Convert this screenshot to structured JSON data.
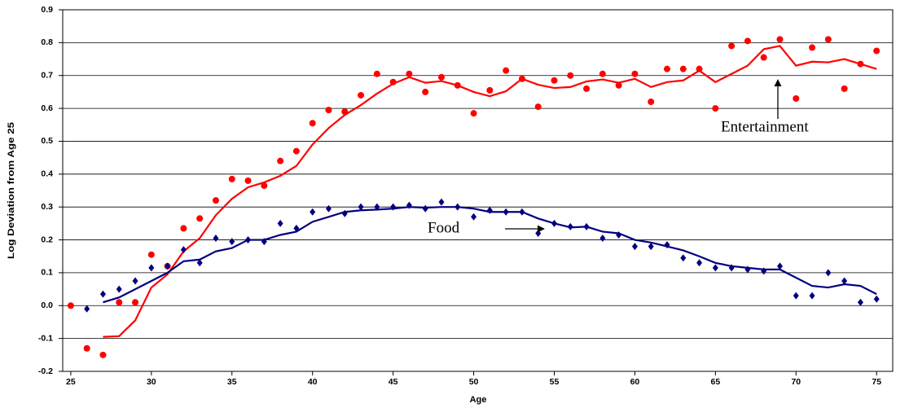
{
  "chart_data": {
    "type": "scatter",
    "x_label": "Age",
    "y_label": "Log Deviation from Age 25",
    "x": [
      25,
      26,
      27,
      28,
      29,
      30,
      31,
      32,
      33,
      34,
      35,
      36,
      37,
      38,
      39,
      40,
      41,
      42,
      43,
      44,
      45,
      46,
      47,
      48,
      49,
      50,
      51,
      52,
      53,
      54,
      55,
      56,
      57,
      58,
      59,
      60,
      61,
      62,
      63,
      64,
      65,
      66,
      67,
      68,
      69,
      70,
      71,
      72,
      73,
      74,
      75
    ],
    "xlim": [
      24.5,
      76
    ],
    "xticks": [
      25,
      30,
      35,
      40,
      45,
      50,
      55,
      60,
      65,
      70,
      75
    ],
    "ylim": [
      -0.2,
      0.9
    ],
    "yticks": [
      -0.2,
      -0.1,
      {
        "value": 0,
        "label": "0.0"
      },
      0.1,
      0.2,
      0.3,
      0.4,
      0.5,
      0.6,
      0.7,
      0.8,
      0.9
    ],
    "grid": true,
    "series": [
      {
        "name": "Entertainment",
        "color": "#ff0000",
        "marker": "circle",
        "values": [
          0.0,
          -0.13,
          -0.15,
          0.01,
          0.01,
          0.155,
          0.12,
          0.235,
          0.265,
          0.32,
          0.385,
          0.38,
          0.365,
          0.44,
          0.47,
          0.555,
          0.595,
          0.59,
          0.64,
          0.705,
          0.68,
          0.705,
          0.65,
          0.695,
          0.67,
          0.585,
          0.655,
          0.715,
          0.69,
          0.605,
          0.685,
          0.7,
          0.66,
          0.705,
          0.67,
          0.705,
          0.62,
          0.72,
          0.72,
          0.72,
          0.6,
          0.79,
          0.805,
          0.755,
          0.81,
          0.63,
          0.785,
          0.81,
          0.66,
          0.735,
          0.775
        ],
        "fit": [
          null,
          null,
          -0.095,
          -0.093,
          -0.045,
          0.055,
          0.095,
          0.165,
          0.205,
          0.275,
          0.325,
          0.36,
          0.375,
          0.395,
          0.425,
          0.49,
          0.54,
          0.58,
          0.61,
          0.645,
          0.675,
          0.695,
          0.678,
          0.683,
          0.67,
          0.65,
          0.637,
          0.652,
          0.69,
          0.672,
          0.662,
          0.665,
          0.682,
          0.688,
          0.678,
          0.69,
          0.665,
          0.68,
          0.685,
          0.715,
          0.68,
          0.705,
          0.73,
          0.78,
          0.79,
          0.73,
          0.742,
          0.74,
          0.75,
          0.735,
          0.72
        ]
      },
      {
        "name": "Food",
        "color": "#000080",
        "marker": "diamond",
        "values": [
          null,
          -0.01,
          0.035,
          0.05,
          0.075,
          0.115,
          0.12,
          0.17,
          0.13,
          0.205,
          0.195,
          0.2,
          0.195,
          0.25,
          0.235,
          0.285,
          0.295,
          0.28,
          0.3,
          0.3,
          0.3,
          0.305,
          0.295,
          0.315,
          0.3,
          0.27,
          0.29,
          0.285,
          0.285,
          0.22,
          0.25,
          0.24,
          0.24,
          0.205,
          0.215,
          0.18,
          0.18,
          0.185,
          0.145,
          0.13,
          0.115,
          0.115,
          0.11,
          0.105,
          0.12,
          0.03,
          0.03,
          0.1,
          0.075,
          0.01,
          0.02
        ],
        "fit": [
          null,
          null,
          0.01,
          0.025,
          0.05,
          0.075,
          0.1,
          0.135,
          0.14,
          0.165,
          0.175,
          0.2,
          0.2,
          0.215,
          0.225,
          0.255,
          0.27,
          0.285,
          0.29,
          0.292,
          0.295,
          0.3,
          0.298,
          0.3,
          0.3,
          0.295,
          0.285,
          0.285,
          0.285,
          0.265,
          0.25,
          0.238,
          0.24,
          0.225,
          0.22,
          0.2,
          0.192,
          0.18,
          0.168,
          0.15,
          0.13,
          0.12,
          0.115,
          0.11,
          0.11,
          0.085,
          0.06,
          0.055,
          0.065,
          0.06,
          0.035
        ]
      }
    ]
  }
}
